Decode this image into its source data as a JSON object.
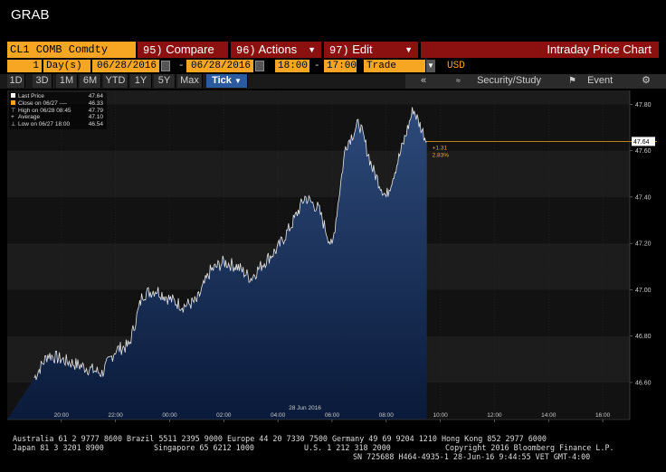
{
  "app_title": "GRAB",
  "command_bar": {
    "security": "CL1 COMB Comdty",
    "compare": {
      "num": "95)",
      "label": "Compare"
    },
    "actions": {
      "num": "96)",
      "label": "Actions"
    },
    "edit": {
      "num": "97)",
      "label": "Edit"
    },
    "chart_title": "Intraday Price Chart"
  },
  "period": {
    "count": "1",
    "unit": "Day(s)",
    "start_date": "06/28/2016",
    "end_date": "06/28/2016",
    "start_time": "18:00",
    "end_time": "17:00",
    "event": "Trade",
    "currency": "USD"
  },
  "toolbar": {
    "ranges": [
      "1D",
      "3D",
      "1M",
      "6M",
      "YTD",
      "1Y",
      "5Y",
      "Max"
    ],
    "tick_label": "Tick",
    "security_study": "Security/Study",
    "event": "Event"
  },
  "legend": {
    "items": [
      {
        "label": "Last Price",
        "value": "47.64",
        "color": "#ffffff"
      },
      {
        "label": "Close on 06/27 ---- ",
        "value": "46.33",
        "color": "#f6a623"
      },
      {
        "label": "High on 06/28 08:45",
        "value": "47.79",
        "color": "#ffffff"
      },
      {
        "label": "Average",
        "value": "47.10",
        "color": "#ffffff"
      },
      {
        "label": "Low on 06/27 18:00",
        "value": "46.54",
        "color": "#ffffff"
      }
    ]
  },
  "change": {
    "abs": "+1.31",
    "pct": "2.83%",
    "last_tag": "47.64"
  },
  "chart_data": {
    "type": "area",
    "date_label": "28 Jun 2016",
    "xticks": [
      "20:00",
      "22:00",
      "00:00",
      "02:00",
      "04:00",
      "06:00",
      "08:00",
      "10:00",
      "12:00",
      "14:00",
      "16:00"
    ],
    "yticks": [
      "46.60",
      "46.80",
      "47.00",
      "47.20",
      "47.40",
      "47.60",
      "47.80"
    ],
    "ylim": [
      46.44,
      47.86
    ],
    "reference_line": 47.64,
    "x": [
      "19:00",
      "19:30",
      "20:00",
      "20:30",
      "21:00",
      "21:30",
      "22:00",
      "22:30",
      "23:00",
      "23:30",
      "00:00",
      "00:30",
      "01:00",
      "01:30",
      "02:00",
      "02:30",
      "03:00",
      "03:30",
      "04:00",
      "04:30",
      "05:00",
      "05:30",
      "06:00",
      "06:30",
      "07:00",
      "07:30",
      "08:00",
      "08:30",
      "09:00",
      "09:30"
    ],
    "y": [
      46.62,
      46.72,
      46.7,
      46.68,
      46.66,
      46.64,
      46.74,
      46.76,
      46.98,
      47.0,
      46.96,
      46.93,
      46.95,
      47.08,
      47.12,
      47.1,
      47.05,
      47.12,
      47.18,
      47.28,
      47.4,
      47.35,
      47.18,
      47.62,
      47.72,
      47.52,
      47.4,
      47.58,
      47.78,
      47.64
    ]
  },
  "footer": {
    "line1": "Australia 61 2 9777 8600 Brazil 5511 2395 9000 Europe 44 20 7330 7500 Germany 49 69 9204 1210 Hong Kong 852 2977 6000",
    "line2a": "Japan 81 3 3201 8900",
    "line2b": "Singapore 65 6212 1000",
    "line2c": "U.S. 1 212 318 2000",
    "line2d": "Copyright 2016 Bloomberg Finance L.P.",
    "line3": "SN 725688 H464-4935-1 28-Jun-16  9:44:55 VET  GMT-4:00"
  }
}
